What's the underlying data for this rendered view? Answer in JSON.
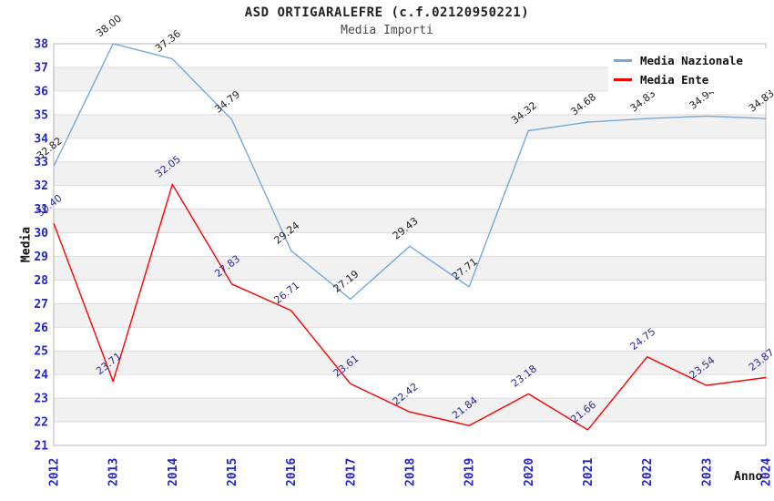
{
  "header": {
    "title": "ASD ORTIGARALEFRE (c.f.02120950221)",
    "subtitle": "Media Importi"
  },
  "chart_data": {
    "type": "line",
    "title": "ASD ORTIGARALEFRE (c.f.02120950221)",
    "subtitle": "Media Importi",
    "xlabel": "Anno",
    "ylabel": "Media",
    "x": [
      2012,
      2013,
      2014,
      2015,
      2016,
      2017,
      2018,
      2019,
      2020,
      2021,
      2022,
      2023,
      2024
    ],
    "series": [
      {
        "name": "Media Nazionale",
        "color": "#74a9dc",
        "label_color": "#1f1f1f",
        "values": [
          32.82,
          38.0,
          37.36,
          34.79,
          29.24,
          27.19,
          29.43,
          27.71,
          34.32,
          34.68,
          34.83,
          34.94,
          34.83
        ]
      },
      {
        "name": "Media Ente",
        "color": "#fe0000",
        "label_color": "#2a2a9c",
        "values": [
          30.4,
          23.71,
          32.05,
          27.83,
          26.71,
          23.61,
          22.42,
          21.84,
          23.18,
          21.66,
          24.75,
          23.54,
          23.87
        ]
      }
    ],
    "ylim": [
      21,
      38
    ],
    "y_step": 1,
    "grid": true,
    "legend_position": "top-right",
    "colors": {
      "tick_label": "#2424c8",
      "band_gray": "#f1f1f1",
      "grid_line": "#dcdcdc",
      "plot_border": "#b4b4b4",
      "plot_background": "#ffffff"
    }
  }
}
